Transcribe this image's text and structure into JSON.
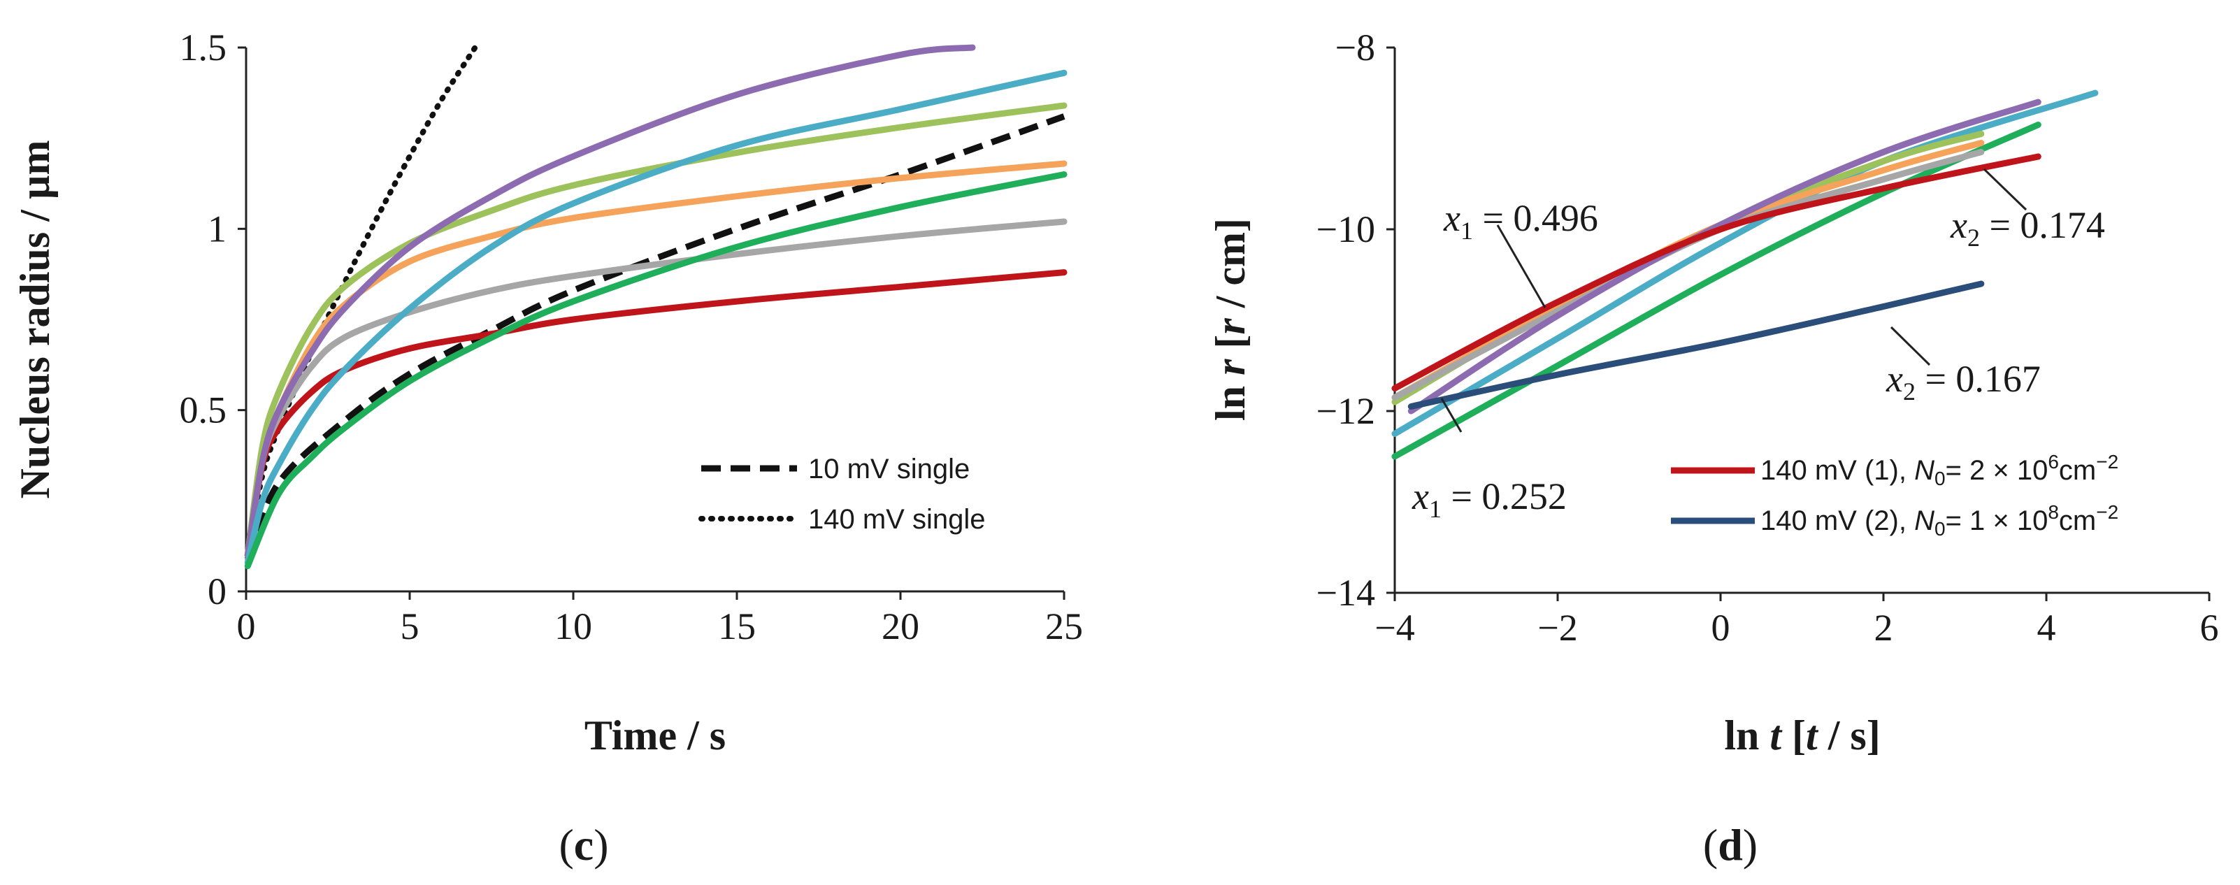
{
  "chart_data": [
    {
      "type": "line",
      "panel_label_prefix": "(",
      "panel_label": "c",
      "panel_label_suffix": ")",
      "xlabel": "Time / s",
      "ylabel": "Nucleus radius / µm",
      "xlim": [
        0,
        25
      ],
      "ylim": [
        0,
        1.5
      ],
      "xticks": [
        "0",
        "5",
        "10",
        "15",
        "20",
        "25"
      ],
      "yticks": [
        "0",
        "0.5",
        "1",
        "1.5"
      ],
      "legend": [
        {
          "label": "10 mV single",
          "style": "dashed"
        },
        {
          "label": "140 mV single",
          "style": "dotted"
        }
      ],
      "series": [
        {
          "name": "10 mV single",
          "color": "#111111",
          "style": "dashed",
          "x": [
            0.05,
            1,
            3,
            5,
            7.5,
            10,
            15,
            20,
            25
          ],
          "y": [
            0.09,
            0.3,
            0.47,
            0.6,
            0.72,
            0.83,
            1.0,
            1.15,
            1.31
          ]
        },
        {
          "name": "140 mV single",
          "color": "#111111",
          "style": "dotted",
          "x": [
            0.05,
            0.5,
            1,
            2,
            3,
            4,
            5,
            6,
            7
          ],
          "y": [
            0.1,
            0.32,
            0.45,
            0.66,
            0.85,
            1.03,
            1.2,
            1.36,
            1.5
          ]
        },
        {
          "name": "red",
          "color": "#c0141b",
          "style": "solid",
          "x": [
            0.05,
            0.5,
            1,
            2,
            3,
            5,
            7.5,
            10,
            15,
            20,
            25
          ],
          "y": [
            0.1,
            0.35,
            0.45,
            0.55,
            0.61,
            0.67,
            0.71,
            0.75,
            0.8,
            0.84,
            0.88
          ]
        },
        {
          "name": "grey",
          "color": "#a6a6a6",
          "style": "solid",
          "x": [
            0.05,
            0.5,
            1,
            2,
            3,
            5,
            7.5,
            10,
            15,
            20,
            25
          ],
          "y": [
            0.1,
            0.36,
            0.48,
            0.62,
            0.7,
            0.77,
            0.83,
            0.87,
            0.93,
            0.98,
            1.02
          ]
        },
        {
          "name": "orange",
          "color": "#f5a35a",
          "style": "solid",
          "x": [
            0.05,
            0.5,
            1,
            2,
            3,
            5,
            7.5,
            10,
            15,
            20,
            25
          ],
          "y": [
            0.1,
            0.38,
            0.5,
            0.68,
            0.79,
            0.91,
            0.98,
            1.03,
            1.09,
            1.14,
            1.18
          ]
        },
        {
          "name": "yellow-green",
          "color": "#9dc25c",
          "style": "solid",
          "x": [
            0.05,
            0.5,
            1,
            2,
            3,
            5,
            7.5,
            10,
            15,
            20,
            25
          ],
          "y": [
            0.1,
            0.4,
            0.55,
            0.73,
            0.84,
            0.96,
            1.05,
            1.12,
            1.21,
            1.28,
            1.34
          ]
        },
        {
          "name": "purple",
          "color": "#8c6bb1",
          "style": "solid",
          "x": [
            0.05,
            0.5,
            1,
            2,
            3,
            5,
            7.5,
            10,
            15,
            20,
            22.2
          ],
          "y": [
            0.1,
            0.36,
            0.5,
            0.66,
            0.78,
            0.95,
            1.09,
            1.2,
            1.37,
            1.48,
            1.5
          ]
        },
        {
          "name": "light-blue",
          "color": "#4bacc6",
          "style": "solid",
          "x": [
            0.05,
            0.5,
            1,
            2,
            3,
            5,
            7.5,
            10,
            15,
            20,
            25
          ],
          "y": [
            0.08,
            0.25,
            0.35,
            0.5,
            0.61,
            0.78,
            0.95,
            1.07,
            1.23,
            1.33,
            1.43
          ]
        },
        {
          "name": "green",
          "color": "#1fae5a",
          "style": "solid",
          "x": [
            0.05,
            1,
            2,
            3,
            5,
            7.5,
            10,
            15,
            20,
            25
          ],
          "y": [
            0.07,
            0.27,
            0.37,
            0.45,
            0.58,
            0.7,
            0.8,
            0.95,
            1.06,
            1.15
          ]
        }
      ]
    },
    {
      "type": "line",
      "panel_label_prefix": "(",
      "panel_label": "d",
      "panel_label_suffix": ")",
      "xlabel_prefix": "ln ",
      "xlabel_var": "t",
      "xlabel_mid": " [",
      "xlabel_var2": "t",
      "xlabel_suffix": " / s]",
      "ylabel_prefix": "ln ",
      "ylabel_var": "r",
      "ylabel_mid": " [",
      "ylabel_var2": "r",
      "ylabel_suffix": " / cm]",
      "xlim": [
        -4,
        6
      ],
      "ylim": [
        -14,
        -8
      ],
      "xticks": [
        "−4",
        "−2",
        "0",
        "2",
        "4",
        "6"
      ],
      "yticks": [
        "−14",
        "−12",
        "−10",
        "−8"
      ],
      "annotations": [
        {
          "sym": "x",
          "sub": "1",
          "text": " = 0.496"
        },
        {
          "sym": "x",
          "sub": "2",
          "text": " = 0.174"
        },
        {
          "sym": "x",
          "sub": "2",
          "text": " = 0.167"
        },
        {
          "sym": "x",
          "sub": "1",
          "text": " = 0.252"
        }
      ],
      "legend": [
        {
          "color": "#c0141b",
          "label": "140 mV (1), ",
          "sym": "N",
          "sub": "0",
          "eq": "= 2 × 10",
          "exp": "6",
          "unit": "cm",
          "unit_exp": "−2"
        },
        {
          "color": "#2a4d7a",
          "label": "140 mV (2), ",
          "sym": "N",
          "sub": "0",
          "eq": "= 1 × 10",
          "exp": "8",
          "unit": "cm",
          "unit_exp": "−2"
        }
      ],
      "series": [
        {
          "name": "green",
          "color": "#1fae5a",
          "x": [
            -4,
            -2,
            0,
            2,
            3.9
          ],
          "y": [
            -12.5,
            -11.5,
            -10.5,
            -9.6,
            -8.85
          ]
        },
        {
          "name": "light-blue",
          "color": "#4bacc6",
          "x": [
            -4,
            -2,
            0,
            2,
            4.6
          ],
          "y": [
            -12.25,
            -11.2,
            -10.15,
            -9.25,
            -8.5
          ]
        },
        {
          "name": "yellow-green",
          "color": "#9dc25c",
          "x": [
            -4,
            -2,
            0,
            2,
            3.2
          ],
          "y": [
            -11.9,
            -10.85,
            -9.95,
            -9.25,
            -8.95
          ]
        },
        {
          "name": "orange",
          "color": "#f5a35a",
          "x": [
            -4,
            -2,
            0,
            2,
            3.2
          ],
          "y": [
            -11.85,
            -10.85,
            -9.95,
            -9.35,
            -9.05
          ]
        },
        {
          "name": "grey",
          "color": "#a6a6a6",
          "x": [
            -4,
            -2,
            0,
            2,
            3.2
          ],
          "y": [
            -11.85,
            -10.9,
            -10.0,
            -9.45,
            -9.15
          ]
        },
        {
          "name": "purple",
          "color": "#8c6bb1",
          "x": [
            -3.8,
            -2,
            0,
            2,
            3.9
          ],
          "y": [
            -12.0,
            -10.95,
            -9.95,
            -9.15,
            -8.6
          ]
        },
        {
          "name": "red",
          "color": "#c0141b",
          "x": [
            -4,
            -2,
            0,
            2,
            3.9
          ],
          "y": [
            -11.75,
            -10.8,
            -10.0,
            -9.55,
            -9.2
          ]
        },
        {
          "name": "dark-blue",
          "color": "#2a4d7a",
          "x": [
            -3.8,
            -2,
            0,
            2,
            3.2
          ],
          "y": [
            -11.95,
            -11.6,
            -11.25,
            -10.85,
            -10.6
          ]
        }
      ]
    }
  ]
}
